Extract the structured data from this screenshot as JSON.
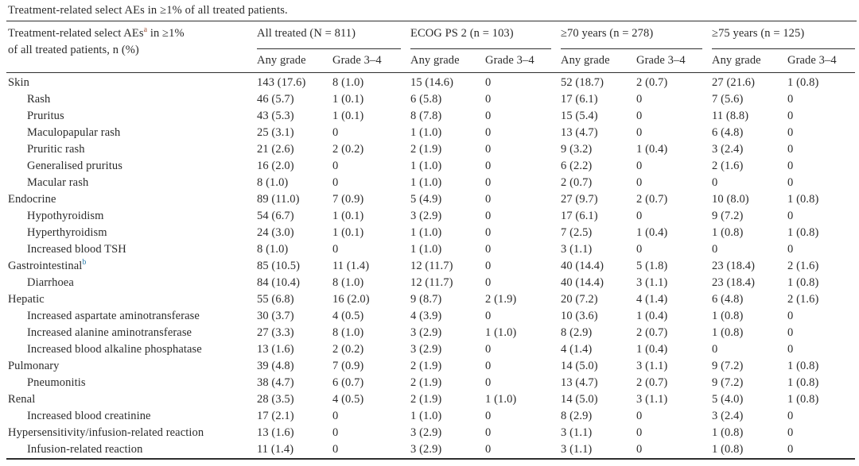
{
  "title": "Treatment-related select AEs in ≥1% of all treated patients.",
  "colors": {
    "text": "#2b2b2b",
    "rule": "#2e2e2e",
    "footnote_a": "#a1543b",
    "footnote_b": "#2f7fae"
  },
  "table": {
    "corner": {
      "line1_pre": "Treatment-related select AEs",
      "footnote": "a",
      "line1_post": " in ≥1%",
      "line2": "of all treated patients, n (%)"
    },
    "groups": [
      {
        "label": "All treated (N = 811)",
        "subcols": [
          "Any grade",
          "Grade 3–4"
        ]
      },
      {
        "label": "ECOG PS 2 (n = 103)",
        "subcols": [
          "Any grade",
          "Grade 3–4"
        ]
      },
      {
        "label": "≥70 years (n = 278)",
        "subcols": [
          "Any grade",
          "Grade 3–4"
        ]
      },
      {
        "label": "≥75 years (n = 125)",
        "subcols": [
          "Any grade",
          "Grade 3–4"
        ]
      }
    ],
    "rows": [
      {
        "label": "Skin",
        "indent": false,
        "sup": "",
        "values": [
          "143 (17.6)",
          "8 (1.0)",
          "15 (14.6)",
          "0",
          "52 (18.7)",
          "2 (0.7)",
          "27 (21.6)",
          "1 (0.8)"
        ]
      },
      {
        "label": "Rash",
        "indent": true,
        "sup": "",
        "values": [
          "46 (5.7)",
          "1 (0.1)",
          "6 (5.8)",
          "0",
          "17 (6.1)",
          "0",
          "7 (5.6)",
          "0"
        ]
      },
      {
        "label": "Pruritus",
        "indent": true,
        "sup": "",
        "values": [
          "43 (5.3)",
          "1 (0.1)",
          "8 (7.8)",
          "0",
          "15 (5.4)",
          "0",
          "11 (8.8)",
          "0"
        ]
      },
      {
        "label": "Maculopapular rash",
        "indent": true,
        "sup": "",
        "values": [
          "25 (3.1)",
          "0",
          "1 (1.0)",
          "0",
          "13 (4.7)",
          "0",
          "6 (4.8)",
          "0"
        ]
      },
      {
        "label": "Pruritic rash",
        "indent": true,
        "sup": "",
        "values": [
          "21 (2.6)",
          "2 (0.2)",
          "2 (1.9)",
          "0",
          "9 (3.2)",
          "1 (0.4)",
          "3 (2.4)",
          "0"
        ]
      },
      {
        "label": "Generalised pruritus",
        "indent": true,
        "sup": "",
        "values": [
          "16 (2.0)",
          "0",
          "1 (1.0)",
          "0",
          "6 (2.2)",
          "0",
          "2 (1.6)",
          "0"
        ]
      },
      {
        "label": "Macular rash",
        "indent": true,
        "sup": "",
        "values": [
          "8 (1.0)",
          "0",
          "1 (1.0)",
          "0",
          "2 (0.7)",
          "0",
          "0",
          "0"
        ]
      },
      {
        "label": "Endocrine",
        "indent": false,
        "sup": "",
        "values": [
          "89 (11.0)",
          "7 (0.9)",
          "5 (4.9)",
          "0",
          "27 (9.7)",
          "2 (0.7)",
          "10 (8.0)",
          "1 (0.8)"
        ]
      },
      {
        "label": "Hypothyroidism",
        "indent": true,
        "sup": "",
        "values": [
          "54 (6.7)",
          "1 (0.1)",
          "3 (2.9)",
          "0",
          "17 (6.1)",
          "0",
          "9 (7.2)",
          "0"
        ]
      },
      {
        "label": "Hyperthyroidism",
        "indent": true,
        "sup": "",
        "values": [
          "24 (3.0)",
          "1 (0.1)",
          "1 (1.0)",
          "0",
          "7 (2.5)",
          "1 (0.4)",
          "1 (0.8)",
          "1 (0.8)"
        ]
      },
      {
        "label": "Increased blood TSH",
        "indent": true,
        "sup": "",
        "values": [
          "8 (1.0)",
          "0",
          "1 (1.0)",
          "0",
          "3 (1.1)",
          "0",
          "0",
          "0"
        ]
      },
      {
        "label": "Gastrointestinal",
        "indent": false,
        "sup": "b",
        "values": [
          "85 (10.5)",
          "11 (1.4)",
          "12 (11.7)",
          "0",
          "40 (14.4)",
          "5 (1.8)",
          "23 (18.4)",
          "2 (1.6)"
        ]
      },
      {
        "label": "Diarrhoea",
        "indent": true,
        "sup": "",
        "values": [
          "84 (10.4)",
          "8 (1.0)",
          "12 (11.7)",
          "0",
          "40 (14.4)",
          "3 (1.1)",
          "23 (18.4)",
          "1 (0.8)"
        ]
      },
      {
        "label": "Hepatic",
        "indent": false,
        "sup": "",
        "values": [
          "55 (6.8)",
          "16 (2.0)",
          "9 (8.7)",
          "2 (1.9)",
          "20 (7.2)",
          "4 (1.4)",
          "6 (4.8)",
          "2 (1.6)"
        ]
      },
      {
        "label": "Increased aspartate aminotransferase",
        "indent": true,
        "sup": "",
        "values": [
          "30 (3.7)",
          "4 (0.5)",
          "4 (3.9)",
          "0",
          "10 (3.6)",
          "1 (0.4)",
          "1 (0.8)",
          "0"
        ]
      },
      {
        "label": "Increased alanine aminotransferase",
        "indent": true,
        "sup": "",
        "values": [
          "27 (3.3)",
          "8 (1.0)",
          "3 (2.9)",
          "1 (1.0)",
          "8 (2.9)",
          "2 (0.7)",
          "1 (0.8)",
          "0"
        ]
      },
      {
        "label": "Increased blood alkaline phosphatase",
        "indent": true,
        "sup": "",
        "values": [
          "13 (1.6)",
          "2 (0.2)",
          "3 (2.9)",
          "0",
          "4 (1.4)",
          "1 (0.4)",
          "0",
          "0"
        ]
      },
      {
        "label": "Pulmonary",
        "indent": false,
        "sup": "",
        "values": [
          "39 (4.8)",
          "7 (0.9)",
          "2 (1.9)",
          "0",
          "14 (5.0)",
          "3 (1.1)",
          "9 (7.2)",
          "1 (0.8)"
        ]
      },
      {
        "label": "Pneumonitis",
        "indent": true,
        "sup": "",
        "values": [
          "38 (4.7)",
          "6 (0.7)",
          "2 (1.9)",
          "0",
          "13 (4.7)",
          "2 (0.7)",
          "9 (7.2)",
          "1 (0.8)"
        ]
      },
      {
        "label": "Renal",
        "indent": false,
        "sup": "",
        "values": [
          "28 (3.5)",
          "4 (0.5)",
          "2 (1.9)",
          "1 (1.0)",
          "14 (5.0)",
          "3 (1.1)",
          "5 (4.0)",
          "1 (0.8)"
        ]
      },
      {
        "label": "Increased blood creatinine",
        "indent": true,
        "sup": "",
        "values": [
          "17 (2.1)",
          "0",
          "1 (1.0)",
          "0",
          "8 (2.9)",
          "0",
          "3 (2.4)",
          "0"
        ]
      },
      {
        "label": "Hypersensitivity/infusion-related reaction",
        "indent": false,
        "sup": "",
        "values": [
          "13 (1.6)",
          "0",
          "3 (2.9)",
          "0",
          "3 (1.1)",
          "0",
          "1 (0.8)",
          "0"
        ]
      },
      {
        "label": "Infusion-related reaction",
        "indent": true,
        "sup": "",
        "values": [
          "11 (1.4)",
          "0",
          "3 (2.9)",
          "0",
          "3 (1.1)",
          "0",
          "1 (0.8)",
          "0"
        ]
      }
    ]
  }
}
